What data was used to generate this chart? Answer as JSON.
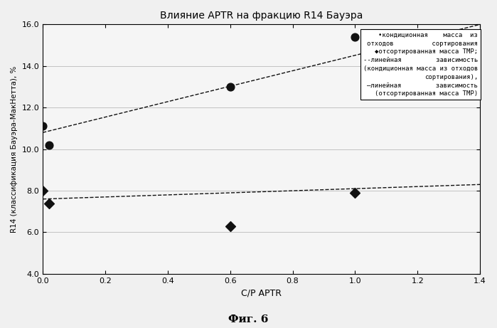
{
  "title": "Влияние APTR на фракцию R14 Бауэра",
  "xlabel": "C/P APTR",
  "ylabel": "R14 (классификация Бауэра-МакНетта), %",
  "xlim": [
    0,
    1.4
  ],
  "ylim": [
    4.0,
    16.0
  ],
  "xticks": [
    0.0,
    0.2,
    0.4,
    0.6,
    0.8,
    1.0,
    1.2,
    1.4
  ],
  "yticks": [
    4.0,
    6.0,
    8.0,
    10.0,
    12.0,
    14.0,
    16.0
  ],
  "series1_x": [
    0.0,
    0.02,
    0.6,
    1.0
  ],
  "series1_y": [
    11.1,
    10.2,
    13.0,
    15.4
  ],
  "series2_x": [
    0.0,
    0.02,
    0.6,
    1.0
  ],
  "series2_y": [
    8.0,
    7.4,
    6.3,
    7.9
  ],
  "trend1_x": [
    0.0,
    1.4
  ],
  "trend1_y": [
    10.8,
    16.0
  ],
  "trend2_x": [
    0.0,
    1.4
  ],
  "trend2_y": [
    7.6,
    8.3
  ],
  "legend_line1": "•кондиционная    масса  из",
  "legend_line2": "отходов          сортирования",
  "legend_line3": "◆отсортированная масса ТМР;",
  "legend_line4": "--линейная         зависимость",
  "legend_line5": "(кондиционная масса из отходов",
  "legend_line6": "сортирования),",
  "legend_line7": "–линейная         зависимость",
  "legend_line8": "(отсортированная масса ТМР)",
  "background_color": "#f0f0f0",
  "plot_bg_color": "#f5f5f5",
  "grid_color": "#bbbbbb",
  "data_color": "#111111",
  "figure_caption": "Фиг. 6"
}
